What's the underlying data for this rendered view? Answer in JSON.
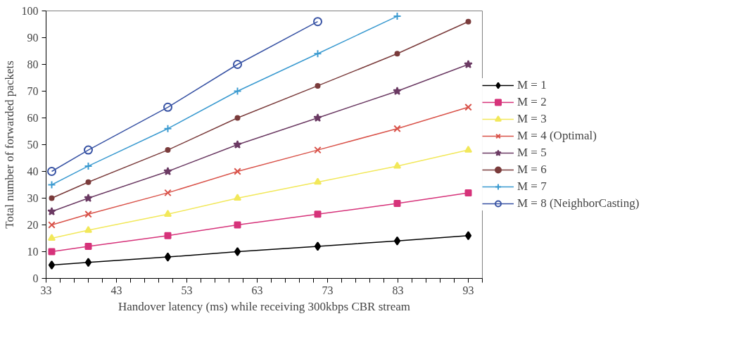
{
  "chart_data": {
    "type": "line",
    "xlabel": "Handover latency (ms) while receiving 300kbps CBR stream",
    "ylabel": "Total number of forwarded packets",
    "x": [
      33.8,
      39,
      50.3,
      60.2,
      71.6,
      82.9,
      93
    ],
    "xlim": [
      33,
      95
    ],
    "xticks": [
      33,
      {
        "value": 35,
        "label": null
      },
      {
        "value": 37,
        "label": null
      },
      {
        "value": 39,
        "label": null
      },
      {
        "value": 41,
        "label": null
      },
      43,
      {
        "value": 45,
        "label": null
      },
      {
        "value": 47,
        "label": null
      },
      {
        "value": 49,
        "label": null
      },
      {
        "value": 51,
        "label": null
      },
      53,
      {
        "value": 55,
        "label": null
      },
      {
        "value": 57,
        "label": null
      },
      {
        "value": 59,
        "label": null
      },
      {
        "value": 61,
        "label": null
      },
      63,
      {
        "value": 65,
        "label": null
      },
      {
        "value": 67,
        "label": null
      },
      {
        "value": 69,
        "label": null
      },
      {
        "value": 71,
        "label": null
      },
      73,
      {
        "value": 75,
        "label": null
      },
      {
        "value": 77,
        "label": null
      },
      {
        "value": 79,
        "label": null
      },
      {
        "value": 81,
        "label": null
      },
      83,
      {
        "value": 85,
        "label": null
      },
      {
        "value": 87,
        "label": null
      },
      {
        "value": 89,
        "label": null
      },
      {
        "value": 91,
        "label": null
      },
      93,
      {
        "value": 95,
        "label": null
      }
    ],
    "ylim": [
      0,
      100
    ],
    "yticks": [
      0,
      10,
      20,
      30,
      40,
      50,
      60,
      70,
      80,
      90,
      100
    ],
    "grid": false,
    "legend": "right",
    "line_style": "solid",
    "series": [
      {
        "name": "M = 1",
        "color": "#000000",
        "marker": "diamond",
        "values": [
          5,
          6,
          8,
          10,
          12,
          14,
          16
        ]
      },
      {
        "name": "M = 2",
        "color": "#d6337a",
        "marker": "square",
        "values": [
          10,
          12,
          16,
          20,
          24,
          28,
          32
        ]
      },
      {
        "name": "M = 3",
        "color": "#f2e85a",
        "marker": "triangle",
        "values": [
          15,
          18,
          24,
          30,
          36,
          42,
          48
        ]
      },
      {
        "name": "M = 4 (Optimal)",
        "color": "#d9534a",
        "marker": "x",
        "values": [
          20,
          24,
          32,
          40,
          48,
          56,
          64
        ]
      },
      {
        "name": "M = 5",
        "color": "#6b3a63",
        "marker": "star",
        "values": [
          25,
          30,
          40,
          50,
          60,
          70,
          80
        ]
      },
      {
        "name": "M = 6",
        "color": "#7a3b3b",
        "marker": "circle",
        "values": [
          30,
          36,
          48,
          60,
          72,
          84,
          96
        ]
      },
      {
        "name": "M = 7",
        "color": "#3a9ad0",
        "marker": "cross",
        "values": [
          35,
          42,
          56,
          70,
          84,
          98,
          null
        ]
      },
      {
        "name": "M = 8 (NeighborCasting)",
        "color": "#3853a4",
        "marker": "circle_open",
        "values": [
          40,
          48,
          64,
          80,
          96,
          null,
          null
        ]
      }
    ]
  }
}
